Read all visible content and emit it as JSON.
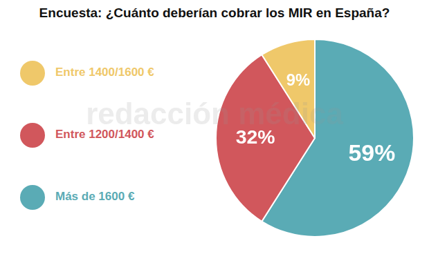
{
  "chart_data": {
    "type": "pie",
    "title": "Encuesta: ¿Cuánto deberían cobrar los MIR en España?",
    "categories": [
      "Más de 1600 €",
      "Entre 1200/1400 €",
      "Entre 1400/1600 €"
    ],
    "values": [
      59,
      32,
      9
    ],
    "value_labels": [
      "59%",
      "32%",
      "9%"
    ],
    "colors": [
      "#5aabb5",
      "#d1575c",
      "#efc86a"
    ],
    "data_labels": true,
    "legend": "left",
    "annotations": [
      "redacción médica"
    ]
  }
}
